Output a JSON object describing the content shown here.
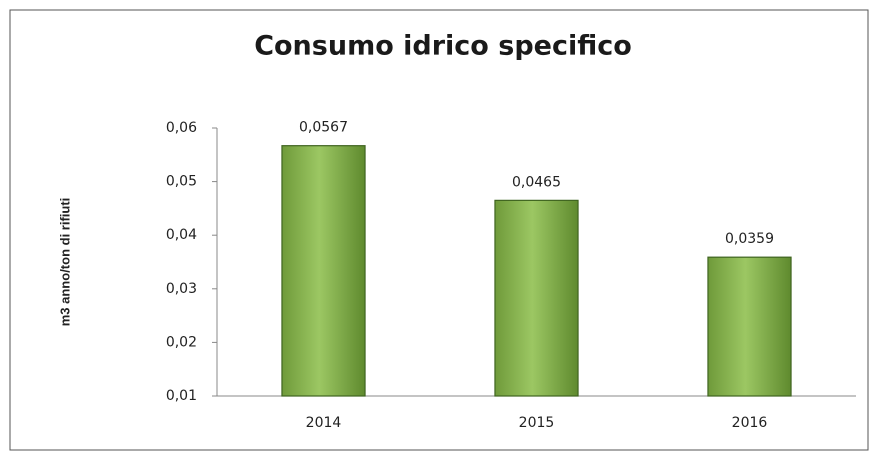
{
  "chart_data": {
    "type": "bar",
    "title": "Consumo idrico specifico",
    "y_label": "m3 anno/ton di rifiuti",
    "categories": [
      "2014",
      "2015",
      "2016"
    ],
    "values": [
      0.0567,
      0.0465,
      0.0359
    ],
    "value_labels": [
      "0,0567",
      "0,0465",
      "0,0359"
    ],
    "color": "#8ab853",
    "ylim": [
      0.01,
      0.06
    ],
    "yticks": [
      {
        "value": 0.01,
        "label": "0,01"
      },
      {
        "value": 0.02,
        "label": "0,02"
      },
      {
        "value": 0.03,
        "label": "0,03"
      },
      {
        "value": 0.04,
        "label": "0,04"
      },
      {
        "value": 0.05,
        "label": "0,05"
      },
      {
        "value": 0.06,
        "label": "0,06"
      }
    ],
    "grid": false
  }
}
